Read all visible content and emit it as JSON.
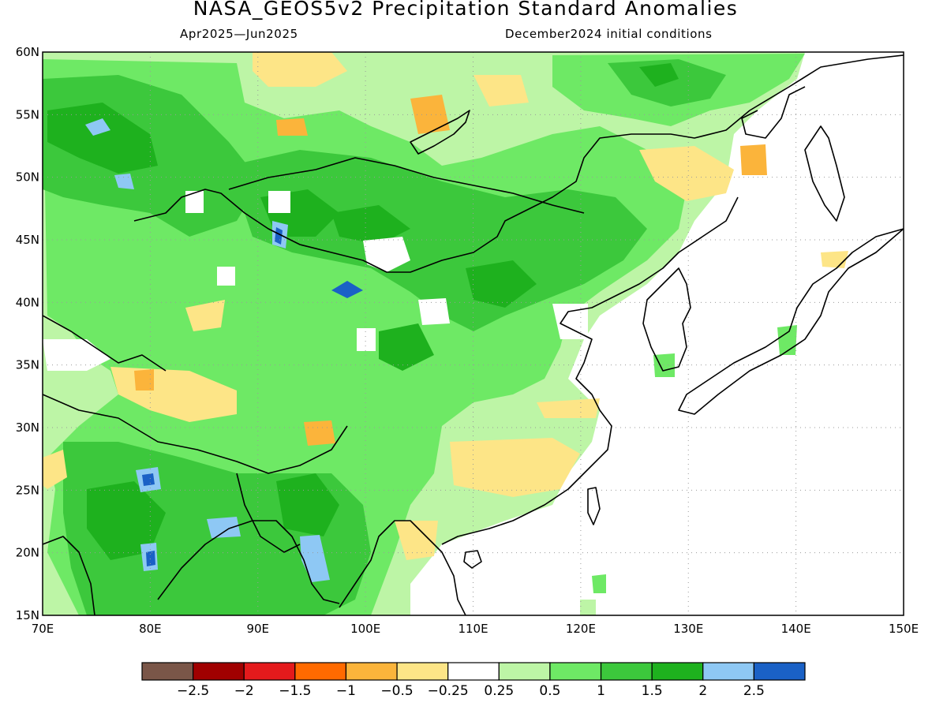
{
  "title": "NASA_GEOS5v2 Precipitation Standard Anomalies",
  "period": "Apr2025—Jun2025",
  "initial_conditions": "December2024 initial conditions",
  "map": {
    "lon_range": [
      70,
      150
    ],
    "lat_range": [
      15,
      60
    ],
    "lon_ticks": [
      "70E",
      "80E",
      "90E",
      "100E",
      "110E",
      "120E",
      "130E",
      "140E",
      "150E"
    ],
    "lat_ticks": [
      "15N",
      "20N",
      "25N",
      "30N",
      "35N",
      "40N",
      "45N",
      "50N",
      "55N",
      "60N"
    ],
    "grid": "dotted",
    "coastlines": true
  },
  "colorbar": {
    "colors": [
      "#7a5648",
      "#a00000",
      "#e41a1c",
      "#ff6a00",
      "#fbb43b",
      "#fde587",
      "#ffffff",
      "#bdf5a6",
      "#6ee965",
      "#3cc83c",
      "#1eb11e",
      "#8ec8f4",
      "#1a61c6"
    ],
    "labels": [
      "−2.5",
      "−2",
      "−1.5",
      "−1",
      "−0.5",
      "−0.25",
      "0.25",
      "0.5",
      "1",
      "1.5",
      "2",
      "2.5"
    ]
  },
  "anomaly_fields": {
    "colors": {
      "light_green": "#bdf5a6",
      "green": "#6ee965",
      "mid_green": "#3cc83c",
      "dark_green": "#1eb11e",
      "light_blue": "#8ec8f4",
      "blue": "#1a61c6",
      "light_orange": "#fde587",
      "orange": "#fbb43b"
    }
  }
}
